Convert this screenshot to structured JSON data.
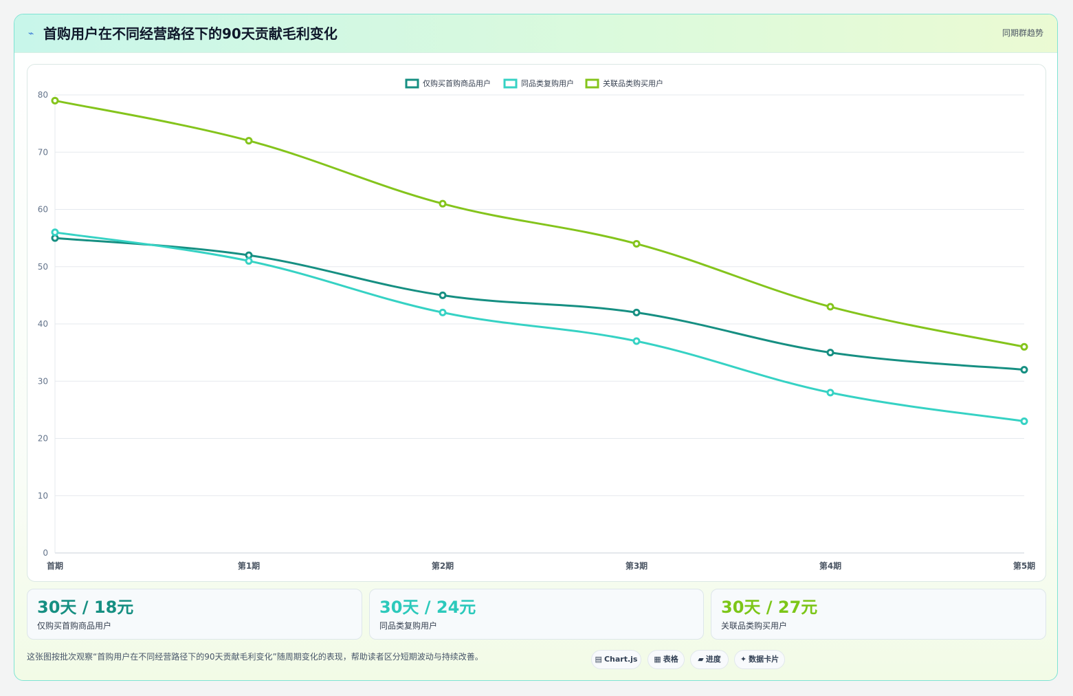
{
  "header": {
    "icon": "sparkle-icon",
    "title": "首购用户在不同经营路径下的90天贡献毛利变化",
    "tag": "同期群趋势"
  },
  "chart_data": {
    "type": "line",
    "categories": [
      "首期",
      "第1期",
      "第2期",
      "第3期",
      "第4期",
      "第5期"
    ],
    "series": [
      {
        "name": "仅购买首购商品用户",
        "color": "#168f82",
        "values": [
          55,
          52,
          45,
          42,
          35,
          32
        ]
      },
      {
        "name": "同品类复购用户",
        "color": "#36d2c4",
        "values": [
          56,
          51,
          42,
          37,
          28,
          23
        ]
      },
      {
        "name": "关联品类购买用户",
        "color": "#84c41c",
        "values": [
          79,
          72,
          61,
          54,
          43,
          36
        ]
      }
    ],
    "ylim": [
      0,
      80
    ],
    "yticks": [
      0,
      10,
      20,
      30,
      40,
      50,
      60,
      70,
      80
    ],
    "legend": "top-center",
    "grid": true
  },
  "stats": [
    {
      "value": "30天 / 18元",
      "label": "仅购买首购商品用户",
      "color": "#168f82"
    },
    {
      "value": "30天 / 24元",
      "label": "同品类复购用户",
      "color": "#2cc9bb"
    },
    {
      "value": "30天 / 27元",
      "label": "关联品类购买用户",
      "color": "#7cc618"
    }
  ],
  "footnote": "这张图按批次观察“首购用户在不同经营路径下的90天贡献毛利变化”随周期变化的表现，帮助读者区分短期波动与持续改善。",
  "chips": [
    {
      "icon": "chart-icon",
      "glyph": "▤",
      "label": "Chart.js"
    },
    {
      "icon": "table-icon",
      "glyph": "▦",
      "label": "表格"
    },
    {
      "icon": "progress-icon",
      "glyph": "▰",
      "label": "进度"
    },
    {
      "icon": "data-card-icon",
      "glyph": "✦",
      "label": "数据卡片"
    }
  ]
}
